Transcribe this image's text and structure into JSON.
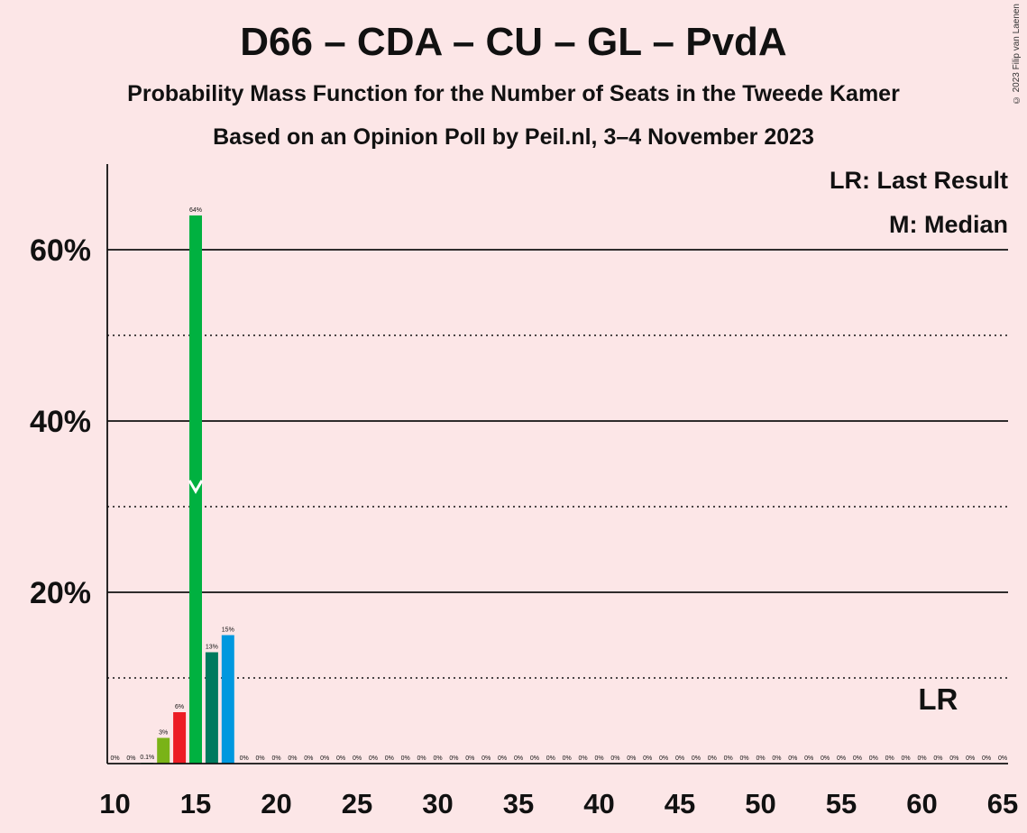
{
  "chart_data": {
    "type": "bar",
    "title": "D66 – CDA – CU – GL – PvdA",
    "subtitle": "Probability Mass Function for the Number of Seats in the Tweede Kamer",
    "subtitle2": "Based on an Opinion Poll by Peil.nl, 3–4 November 2023",
    "copyright": "© 2023 Filip van Laenen",
    "xlim": [
      10,
      65
    ],
    "ylim": [
      0,
      70
    ],
    "x_ticks": [
      10,
      15,
      20,
      25,
      30,
      35,
      40,
      45,
      50,
      55,
      60,
      65
    ],
    "y_ticks": [
      {
        "value": 20,
        "label": "20%"
      },
      {
        "value": 40,
        "label": "40%"
      },
      {
        "value": 60,
        "label": "60%"
      }
    ],
    "minor_gridlines": [
      10,
      30,
      50
    ],
    "bars": [
      {
        "x": 10,
        "value": 0,
        "label": "0%",
        "color": "#e6e6e6"
      },
      {
        "x": 11,
        "value": 0,
        "label": "0%",
        "color": "#e6e6e6"
      },
      {
        "x": 12,
        "value": 0.1,
        "label": "0.1%",
        "color": "#00a651"
      },
      {
        "x": 13,
        "value": 3,
        "label": "3%",
        "color": "#7ab317"
      },
      {
        "x": 14,
        "value": 6,
        "label": "6%",
        "color": "#ec1c24"
      },
      {
        "x": 15,
        "value": 64,
        "label": "64%",
        "color": "#00b140"
      },
      {
        "x": 16,
        "value": 13,
        "label": "13%",
        "color": "#007a5e"
      },
      {
        "x": 17,
        "value": 15,
        "label": "15%",
        "color": "#0098df"
      },
      {
        "x": 18,
        "value": 0,
        "label": "0%",
        "color": "#e6e6e6"
      },
      {
        "x": 19,
        "value": 0,
        "label": "0%",
        "color": "#e6e6e6"
      },
      {
        "x": 20,
        "value": 0,
        "label": "0%",
        "color": "#e6e6e6"
      },
      {
        "x": 21,
        "value": 0,
        "label": "0%",
        "color": "#e6e6e6"
      },
      {
        "x": 22,
        "value": 0,
        "label": "0%",
        "color": "#e6e6e6"
      },
      {
        "x": 23,
        "value": 0,
        "label": "0%",
        "color": "#e6e6e6"
      },
      {
        "x": 24,
        "value": 0,
        "label": "0%",
        "color": "#e6e6e6"
      },
      {
        "x": 25,
        "value": 0,
        "label": "0%",
        "color": "#e6e6e6"
      },
      {
        "x": 26,
        "value": 0,
        "label": "0%",
        "color": "#e6e6e6"
      },
      {
        "x": 27,
        "value": 0,
        "label": "0%",
        "color": "#e6e6e6"
      },
      {
        "x": 28,
        "value": 0,
        "label": "0%",
        "color": "#e6e6e6"
      },
      {
        "x": 29,
        "value": 0,
        "label": "0%",
        "color": "#e6e6e6"
      },
      {
        "x": 30,
        "value": 0,
        "label": "0%",
        "color": "#e6e6e6"
      },
      {
        "x": 31,
        "value": 0,
        "label": "0%",
        "color": "#e6e6e6"
      },
      {
        "x": 32,
        "value": 0,
        "label": "0%",
        "color": "#e6e6e6"
      },
      {
        "x": 33,
        "value": 0,
        "label": "0%",
        "color": "#e6e6e6"
      },
      {
        "x": 34,
        "value": 0,
        "label": "0%",
        "color": "#e6e6e6"
      },
      {
        "x": 35,
        "value": 0,
        "label": "0%",
        "color": "#e6e6e6"
      },
      {
        "x": 36,
        "value": 0,
        "label": "0%",
        "color": "#e6e6e6"
      },
      {
        "x": 37,
        "value": 0,
        "label": "0%",
        "color": "#e6e6e6"
      },
      {
        "x": 38,
        "value": 0,
        "label": "0%",
        "color": "#e6e6e6"
      },
      {
        "x": 39,
        "value": 0,
        "label": "0%",
        "color": "#e6e6e6"
      },
      {
        "x": 40,
        "value": 0,
        "label": "0%",
        "color": "#e6e6e6"
      },
      {
        "x": 41,
        "value": 0,
        "label": "0%",
        "color": "#e6e6e6"
      },
      {
        "x": 42,
        "value": 0,
        "label": "0%",
        "color": "#e6e6e6"
      },
      {
        "x": 43,
        "value": 0,
        "label": "0%",
        "color": "#e6e6e6"
      },
      {
        "x": 44,
        "value": 0,
        "label": "0%",
        "color": "#e6e6e6"
      },
      {
        "x": 45,
        "value": 0,
        "label": "0%",
        "color": "#e6e6e6"
      },
      {
        "x": 46,
        "value": 0,
        "label": "0%",
        "color": "#e6e6e6"
      },
      {
        "x": 47,
        "value": 0,
        "label": "0%",
        "color": "#e6e6e6"
      },
      {
        "x": 48,
        "value": 0,
        "label": "0%",
        "color": "#e6e6e6"
      },
      {
        "x": 49,
        "value": 0,
        "label": "0%",
        "color": "#e6e6e6"
      },
      {
        "x": 50,
        "value": 0,
        "label": "0%",
        "color": "#e6e6e6"
      },
      {
        "x": 51,
        "value": 0,
        "label": "0%",
        "color": "#e6e6e6"
      },
      {
        "x": 52,
        "value": 0,
        "label": "0%",
        "color": "#e6e6e6"
      },
      {
        "x": 53,
        "value": 0,
        "label": "0%",
        "color": "#e6e6e6"
      },
      {
        "x": 54,
        "value": 0,
        "label": "0%",
        "color": "#e6e6e6"
      },
      {
        "x": 55,
        "value": 0,
        "label": "0%",
        "color": "#e6e6e6"
      },
      {
        "x": 56,
        "value": 0,
        "label": "0%",
        "color": "#e6e6e6"
      },
      {
        "x": 57,
        "value": 0,
        "label": "0%",
        "color": "#e6e6e6"
      },
      {
        "x": 58,
        "value": 0,
        "label": "0%",
        "color": "#e6e6e6"
      },
      {
        "x": 59,
        "value": 0,
        "label": "0%",
        "color": "#e6e6e6"
      },
      {
        "x": 60,
        "value": 0,
        "label": "0%",
        "color": "#e6e6e6"
      },
      {
        "x": 61,
        "value": 0,
        "label": "0%",
        "color": "#e6e6e6"
      },
      {
        "x": 62,
        "value": 0,
        "label": "0%",
        "color": "#e6e6e6"
      },
      {
        "x": 63,
        "value": 0,
        "label": "0%",
        "color": "#e6e6e6"
      },
      {
        "x": 64,
        "value": 0,
        "label": "0%",
        "color": "#e6e6e6"
      },
      {
        "x": 65,
        "value": 0,
        "label": "0%",
        "color": "#e6e6e6"
      }
    ],
    "median": {
      "x": 15,
      "marker": "M"
    },
    "last_result": {
      "x": 61,
      "label": "LR"
    },
    "legend": {
      "placement": "top-right",
      "lr_entry": "LR: Last Result",
      "median_entry": "M: Median"
    }
  }
}
